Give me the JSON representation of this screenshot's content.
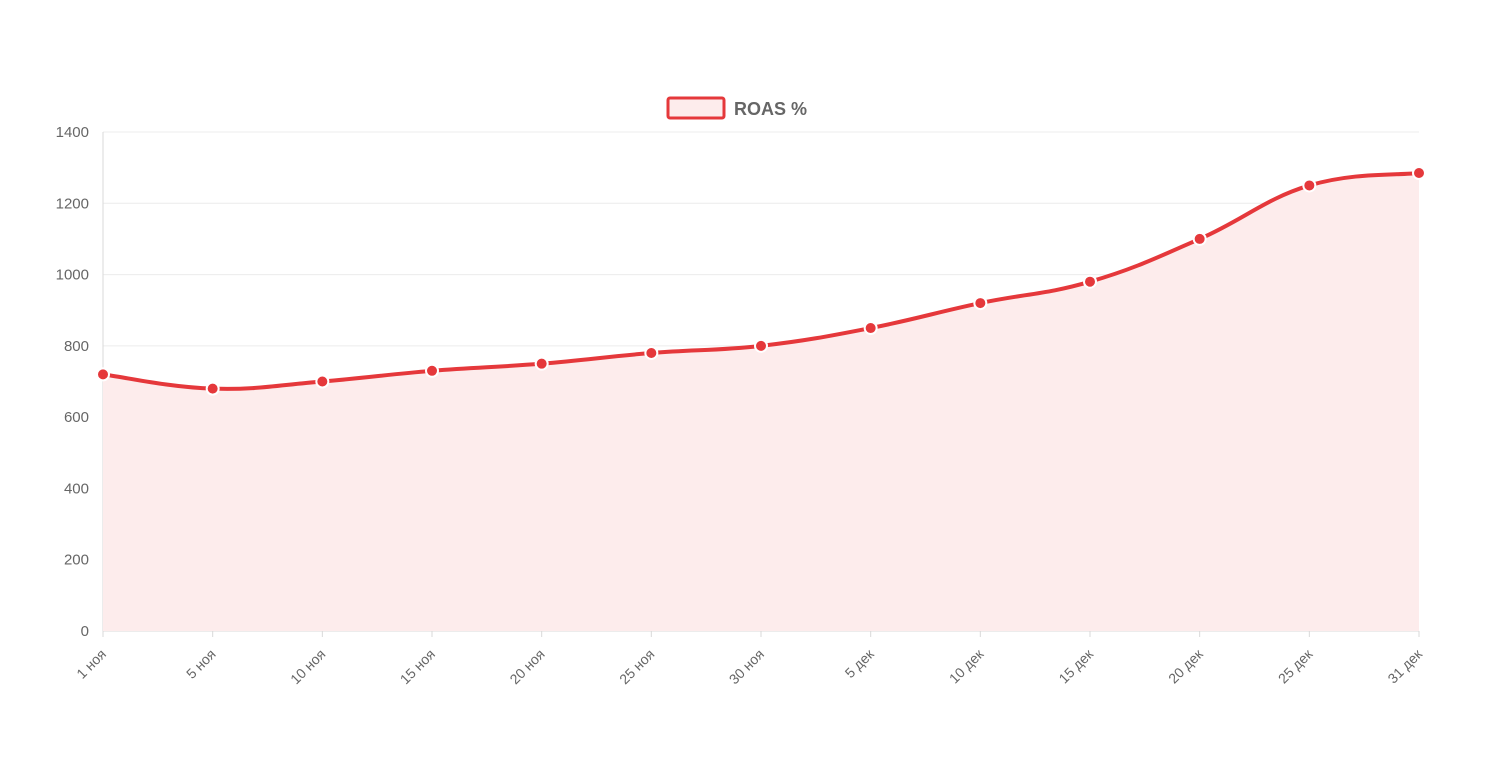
{
  "chart_data": {
    "type": "area",
    "legend": {
      "position": "top-center",
      "label": "ROAS %"
    },
    "colors": {
      "line": "#e5383b",
      "fill": "#fdecec",
      "point_border": "#ffffff",
      "grid": "#ececec"
    },
    "grid": true,
    "ylim": [
      0,
      1400
    ],
    "y_ticks": [
      0,
      200,
      400,
      600,
      800,
      1000,
      1200,
      1400
    ],
    "y_tick_labels": [
      "0",
      "200",
      "400",
      "600",
      "800",
      "1000",
      "1200",
      "1400"
    ],
    "categories": [
      "1 ноя",
      "5 ноя",
      "10 ноя",
      "15 ноя",
      "20 ноя",
      "25 ноя",
      "30 ноя",
      "5 дек",
      "10 дек",
      "15 дек",
      "20 дек",
      "25 дек",
      "31 дек"
    ],
    "series": [
      {
        "name": "ROAS %",
        "values": [
          720,
          680,
          700,
          730,
          750,
          780,
          800,
          850,
          920,
          980,
          1100,
          1250,
          1285
        ]
      }
    ]
  }
}
